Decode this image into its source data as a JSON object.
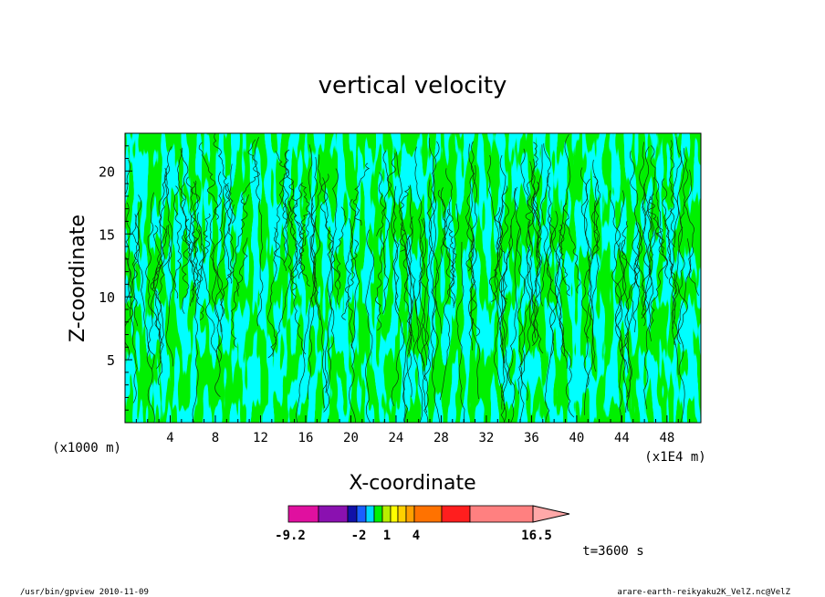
{
  "chart_data": {
    "type": "heatmap",
    "title": "vertical velocity",
    "xlabel": "X-coordinate",
    "ylabel": "Z-coordinate",
    "x_unit": "(x1E4 m)",
    "y_unit": "(x1000 m)",
    "xlim": [
      0,
      51
    ],
    "ylim": [
      0,
      23
    ],
    "x_ticks": [
      "4",
      "8",
      "12",
      "16",
      "20",
      "24",
      "28",
      "32",
      "36",
      "40",
      "44",
      "48"
    ],
    "y_ticks": [
      "5",
      "10",
      "15",
      "20"
    ],
    "colorbar": {
      "labels": [
        "-9.2",
        "-2",
        "1",
        "4",
        "16.5"
      ],
      "colors": [
        "#e0109f",
        "#8a11b0",
        "#1111a8",
        "#1a5fff",
        "#00d7ff",
        "#00f000",
        "#b7ee00",
        "#ffff00",
        "#ffd000",
        "#ffa000",
        "#ff7200",
        "#ff1e1e",
        "#ff8080",
        "#ffa8a8"
      ]
    },
    "dominant_colors": [
      "#00f000",
      "#00ffff"
    ],
    "time_label": "t=3600 s"
  },
  "footer": {
    "left": "/usr/bin/gpview  2010-11-09",
    "right": "arare-earth-reikyaku2K_VelZ.nc@VelZ"
  }
}
